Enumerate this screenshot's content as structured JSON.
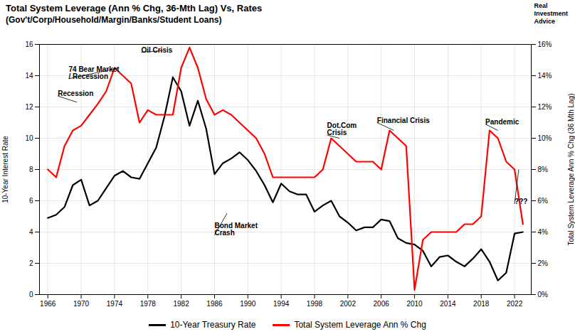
{
  "chart_data": {
    "type": "line",
    "title": "Total System Leverage (Ann % Chg, 36-Mth Lag) Vs, Rates",
    "subtitle": "(Gov't/Corp/Household/Margin/Banks/Student Loans)",
    "ylabel": "10-Year Interest Rate",
    "y2label": "Total System Leverage Ann % Chg (36 Mth Lag)",
    "xlim": [
      1965,
      2024
    ],
    "xticks": [
      1966,
      1970,
      1974,
      1978,
      1982,
      1986,
      1990,
      1994,
      1998,
      2002,
      2006,
      2010,
      2014,
      2018,
      2022
    ],
    "ylim": [
      0,
      16
    ],
    "yticks": [
      0,
      2,
      4,
      6,
      8,
      10,
      12,
      14,
      16
    ],
    "y2lim": [
      0,
      16
    ],
    "y2ticks": [
      {
        "value": 0,
        "label": "0%"
      },
      {
        "value": 2,
        "label": "2%"
      },
      {
        "value": 4,
        "label": "4%"
      },
      {
        "value": 6,
        "label": "6%"
      },
      {
        "value": 8,
        "label": "8%"
      },
      {
        "value": 10,
        "label": "10%"
      },
      {
        "value": 12,
        "label": "12%"
      },
      {
        "value": 14,
        "label": "14%"
      },
      {
        "value": 16,
        "label": "16%"
      }
    ],
    "grid": true,
    "legend": "bottom",
    "x": [
      1966,
      1967,
      1968,
      1969,
      1970,
      1971,
      1972,
      1973,
      1974,
      1975,
      1976,
      1977,
      1978,
      1979,
      1980,
      1981,
      1982,
      1983,
      1984,
      1985,
      1986,
      1987,
      1988,
      1989,
      1990,
      1991,
      1992,
      1993,
      1994,
      1995,
      1996,
      1997,
      1998,
      1999,
      2000,
      2001,
      2002,
      2003,
      2004,
      2005,
      2006,
      2007,
      2008,
      2009,
      2010,
      2011,
      2012,
      2013,
      2014,
      2015,
      2016,
      2017,
      2018,
      2019,
      2020,
      2021,
      2022,
      2023
    ],
    "series": [
      {
        "name": "10-Year Treasury Rate",
        "color": "#000000",
        "values": [
          4.9,
          5.1,
          5.6,
          7.0,
          7.35,
          5.7,
          6.0,
          6.8,
          7.6,
          7.9,
          7.5,
          7.4,
          8.4,
          9.4,
          11.4,
          13.9,
          13.0,
          10.8,
          12.4,
          10.6,
          7.7,
          8.4,
          8.7,
          9.1,
          8.6,
          7.9,
          7.0,
          5.9,
          7.1,
          6.6,
          6.4,
          6.4,
          5.3,
          5.7,
          6.0,
          5.0,
          4.6,
          4.1,
          4.3,
          4.3,
          4.8,
          4.7,
          3.6,
          3.3,
          3.2,
          2.8,
          1.8,
          2.4,
          2.5,
          2.1,
          1.8,
          2.3,
          2.9,
          2.1,
          0.9,
          1.4,
          3.9,
          4.0
        ]
      },
      {
        "name": "Total System Leverage Ann % Chg",
        "color": "#ff0000",
        "axis": "y2",
        "values": [
          8.0,
          7.5,
          9.5,
          10.5,
          10.8,
          11.5,
          12.2,
          13.0,
          14.5,
          14.0,
          13.5,
          11.0,
          11.8,
          11.5,
          11.5,
          11.5,
          14.5,
          15.8,
          14.5,
          12.5,
          11.5,
          11.8,
          11.5,
          11.0,
          10.5,
          10.0,
          9.0,
          7.5,
          7.5,
          7.5,
          7.5,
          7.5,
          7.5,
          8.0,
          10.0,
          9.5,
          9.0,
          8.5,
          8.5,
          8.5,
          8.0,
          10.5,
          10.0,
          9.5,
          0.3,
          3.5,
          4.0,
          4.0,
          4.0,
          4.0,
          4.5,
          4.5,
          5.0,
          10.5,
          10.0,
          8.5,
          8.0,
          4.5
        ]
      }
    ],
    "annotations": [
      {
        "text": "Recession",
        "x": 1969.5,
        "y": 12.3,
        "tx": 1967.2,
        "ty": 12.7
      },
      {
        "text": "74 Bear Market\n/ Recession",
        "x": 1974.5,
        "y": 14.5,
        "tx": 1968.5,
        "ty": 13.8
      },
      {
        "text": "Oil Crisis",
        "x": 1979.8,
        "y": 15.6,
        "tx": 1977.2,
        "ty": 15.5
      },
      {
        "text": "Bond Market\nCrash",
        "x": 1987.5,
        "y": 5.2,
        "tx": 1986.0,
        "ty": 3.8
      },
      {
        "text": "Dot.Com\nCrisis",
        "x": 2001.0,
        "y": 10.0,
        "tx": 1999.5,
        "ty": 10.2
      },
      {
        "text": "Financial Crisis",
        "x": 2007.5,
        "y": 10.5,
        "tx": 2005.5,
        "ty": 11.0
      },
      {
        "text": "Pandemic",
        "x": 2020.0,
        "y": 10.5,
        "tx": 2018.5,
        "ty": 10.9
      },
      {
        "text": "???",
        "x": 2022.5,
        "y": 8.0,
        "tx": 2022.0,
        "ty": 5.8
      },
      {
        "text": "Real\nInvestment\nAdvice"
      }
    ]
  }
}
